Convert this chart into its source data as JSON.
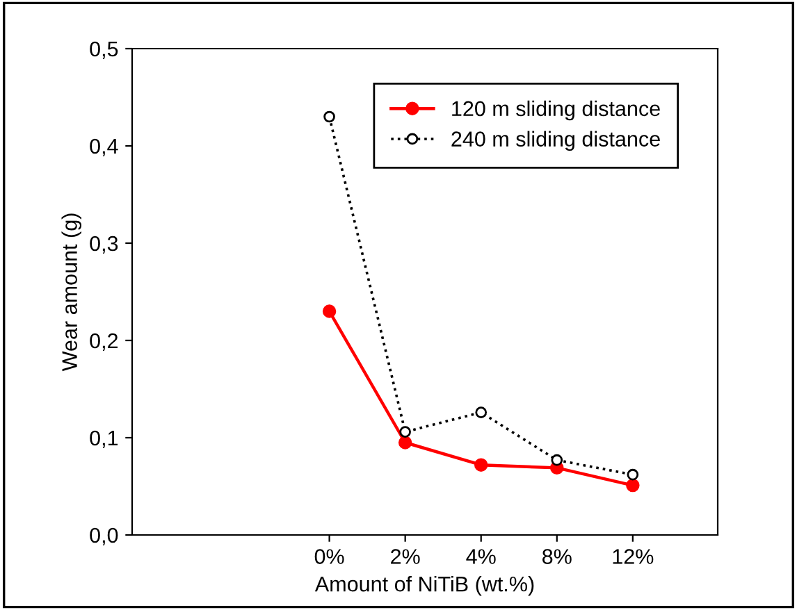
{
  "chart_data": {
    "type": "line",
    "xlabel": "Amount of NiTiB (wt.%)",
    "ylabel": "Wear amount (g)",
    "categories": [
      "0%",
      "2%",
      "4%",
      "8%",
      "12%"
    ],
    "series": [
      {
        "name": "120 m sliding distance",
        "color": "#ff0000",
        "values": [
          0.23,
          0.095,
          0.072,
          0.069,
          0.051
        ],
        "marker": "circle",
        "line_style": "solid"
      },
      {
        "name": "240 m sliding distance",
        "color": "#000000",
        "values": [
          0.43,
          0.106,
          0.126,
          0.077,
          0.062
        ],
        "marker": "circle",
        "line_style": "dotted"
      }
    ],
    "ylim": [
      0,
      0.5
    ],
    "yticks": [
      {
        "value": 0,
        "label": "0,0"
      },
      {
        "value": 0.1,
        "label": "0,1"
      },
      {
        "value": 0.2,
        "label": "0,2"
      },
      {
        "value": 0.3,
        "label": "0,3"
      },
      {
        "value": 0.4,
        "label": "0,4"
      },
      {
        "value": 0.5,
        "label": "0,5"
      }
    ],
    "legend": "top right",
    "grid": false
  }
}
